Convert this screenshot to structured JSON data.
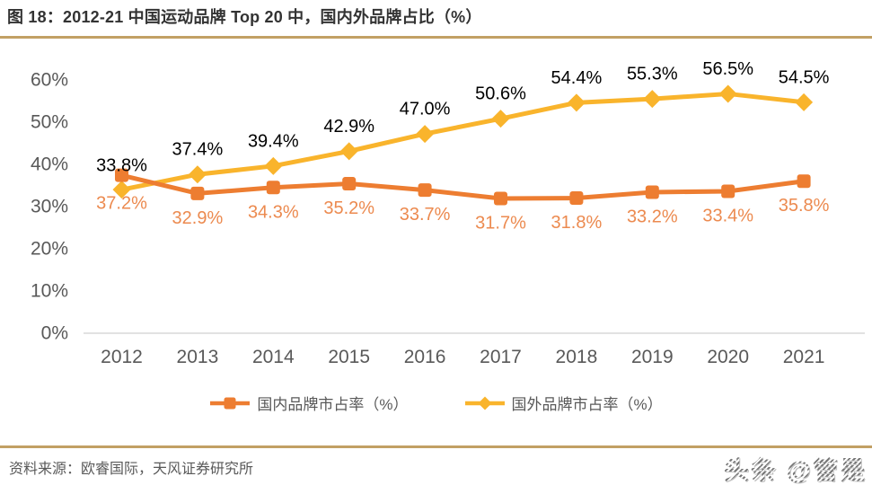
{
  "header": {
    "title": "图 18：2012-21 中国运动品牌 Top 20 中，国内外品牌占比（%）"
  },
  "chart_data": {
    "type": "line",
    "title": "图 18：2012-21 中国运动品牌 Top 20 中，国内外品牌占比（%）",
    "categories": [
      "2012",
      "2013",
      "2014",
      "2015",
      "2016",
      "2017",
      "2018",
      "2019",
      "2020",
      "2021"
    ],
    "series": [
      {
        "name": "国内品牌市占率（%）",
        "marker": "square",
        "color": "#ED7D31",
        "label_color": "#EC8A4F",
        "values": [
          37.2,
          32.9,
          34.3,
          35.2,
          33.7,
          31.7,
          31.8,
          33.2,
          33.4,
          35.8
        ]
      },
      {
        "name": "国外品牌市占率（%）",
        "marker": "diamond",
        "color": "#F9B42C",
        "label_color": "#000000",
        "values": [
          33.8,
          37.4,
          39.4,
          42.9,
          47.0,
          50.6,
          54.4,
          55.3,
          56.5,
          54.5
        ]
      }
    ],
    "ylim": [
      0,
      60
    ],
    "y_tick_step": 10,
    "y_tick_labels": [
      "0%",
      "10%",
      "20%",
      "30%",
      "40%",
      "50%",
      "60%"
    ],
    "grid": false,
    "legend_position": "bottom",
    "data_labels": true
  },
  "footer": {
    "source": "资料来源：欧睿国际，天风证券研究所",
    "watermark": "头条 @管是"
  },
  "style": {
    "accent_rule": "#C2A064",
    "axis_text": "#595959",
    "axis_line": "#D9D9D9",
    "title_color": "#333333"
  }
}
